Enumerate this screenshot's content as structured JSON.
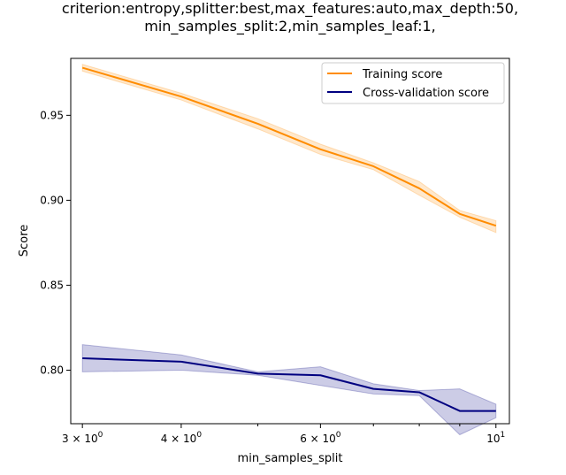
{
  "chart_data": {
    "type": "line",
    "title_lines": [
      "criterion:entropy,splitter:best,max_features:auto,max_depth:50,",
      "min_samples_split:2,min_samples_leaf:1,"
    ],
    "xlabel": "min_samples_split",
    "ylabel": "Score",
    "xscale": "log",
    "xlim": [
      2.9,
      10.4
    ],
    "ylim": [
      0.7685,
      0.9835
    ],
    "x": [
      3,
      4,
      5,
      6,
      7,
      8,
      9,
      10
    ],
    "x_ticks": [
      {
        "value": 3,
        "base": "3 × 10",
        "exp": "0"
      },
      {
        "value": 4,
        "base": "4 × 10",
        "exp": "0"
      },
      {
        "value": 6,
        "base": "6 × 10",
        "exp": "0"
      },
      {
        "value": 10,
        "base": "10",
        "exp": "1"
      }
    ],
    "x_minor_ticks": [
      5,
      7,
      8,
      9
    ],
    "y_ticks": [
      {
        "value": 0.8,
        "label": "0.80"
      },
      {
        "value": 0.85,
        "label": "0.85"
      },
      {
        "value": 0.9,
        "label": "0.90"
      },
      {
        "value": 0.95,
        "label": "0.95"
      }
    ],
    "grid": false,
    "legend_position": "top-right",
    "series": [
      {
        "name": "Training score",
        "color": "#ff8c00",
        "values": [
          0.978,
          0.961,
          0.945,
          0.93,
          0.92,
          0.907,
          0.892,
          0.885
        ],
        "lower": [
          0.976,
          0.959,
          0.942,
          0.927,
          0.918,
          0.903,
          0.89,
          0.881
        ],
        "upper": [
          0.98,
          0.963,
          0.948,
          0.933,
          0.922,
          0.911,
          0.894,
          0.888
        ]
      },
      {
        "name": "Cross-validation score",
        "color": "#000080",
        "values": [
          0.807,
          0.805,
          0.798,
          0.797,
          0.789,
          0.787,
          0.776,
          0.776
        ],
        "lower": [
          0.799,
          0.8,
          0.797,
          0.791,
          0.786,
          0.785,
          0.762,
          0.772
        ],
        "upper": [
          0.815,
          0.809,
          0.799,
          0.802,
          0.792,
          0.788,
          0.789,
          0.78
        ]
      }
    ]
  }
}
